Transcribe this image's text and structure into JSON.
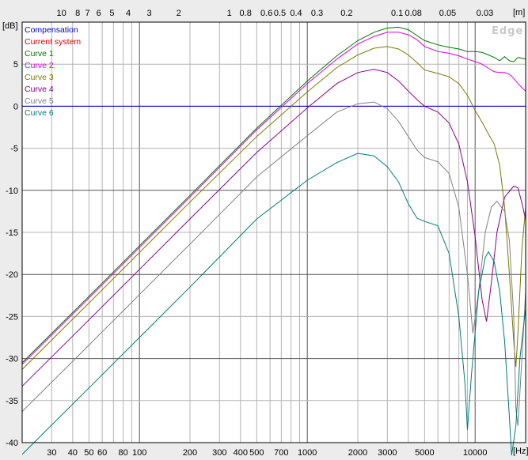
{
  "chart_data": {
    "type": "line",
    "watermark": "Edge",
    "ylabel": "[dB]",
    "xlabel": "[Hz]",
    "top_axis_label": "[m]",
    "x_scale": "log",
    "xlim": [
      20,
      20000
    ],
    "ylim": [
      -40,
      10
    ],
    "grid": true,
    "legend_position": "top-left",
    "x_ticks": [
      {
        "v": 30,
        "label": "30"
      },
      {
        "v": 40,
        "label": "40"
      },
      {
        "v": 50,
        "label": "50"
      },
      {
        "v": 60,
        "label": "60"
      },
      {
        "v": 80,
        "label": "80"
      },
      {
        "v": 100,
        "label": "100"
      },
      {
        "v": 200,
        "label": "200"
      },
      {
        "v": 300,
        "label": "300"
      },
      {
        "v": 400,
        "label": "400"
      },
      {
        "v": 500,
        "label": "500"
      },
      {
        "v": 700,
        "label": "700"
      },
      {
        "v": 1000,
        "label": "1000"
      },
      {
        "v": 2000,
        "label": "2000"
      },
      {
        "v": 3000,
        "label": "3000"
      },
      {
        "v": 5000,
        "label": "5000"
      },
      {
        "v": 10000,
        "label": "10000"
      }
    ],
    "top_ticks": [
      {
        "label": "10",
        "m": 10
      },
      {
        "label": "8",
        "m": 8
      },
      {
        "label": "7",
        "m": 7
      },
      {
        "label": "6",
        "m": 6
      },
      {
        "label": "5",
        "m": 5
      },
      {
        "label": "4",
        "m": 4
      },
      {
        "label": "3",
        "m": 3
      },
      {
        "label": "2",
        "m": 2
      },
      {
        "label": "1",
        "m": 1
      },
      {
        "label": "0.8",
        "m": 0.8
      },
      {
        "label": "0.6",
        "m": 0.6
      },
      {
        "label": "0.5",
        "m": 0.5
      },
      {
        "label": "0.4",
        "m": 0.4
      },
      {
        "label": "0.3",
        "m": 0.3
      },
      {
        "label": "0.2",
        "m": 0.2
      },
      {
        "label": "0.1",
        "m": 0.1
      },
      {
        "label": "0.08",
        "m": 0.08
      },
      {
        "label": "0.05",
        "m": 0.05
      },
      {
        "label": "0.03",
        "m": 0.03
      }
    ],
    "y_ticks": [
      5,
      0,
      -5,
      -10,
      -15,
      -20,
      -25,
      -30,
      -35,
      -40
    ],
    "series": [
      {
        "name": "Compensation",
        "color": "#0000cc",
        "points": [
          [
            20,
            0
          ],
          [
            20000,
            0
          ]
        ]
      },
      {
        "name": "Current system",
        "color": "#cc0000",
        "points": []
      },
      {
        "name": "Curve 1",
        "color": "#007700",
        "points": [
          [
            20,
            -30.5
          ],
          [
            50,
            -22.6
          ],
          [
            100,
            -16.6
          ],
          [
            200,
            -10.6
          ],
          [
            500,
            -2.6
          ],
          [
            1000,
            3.0
          ],
          [
            1500,
            6.0
          ],
          [
            2000,
            7.8
          ],
          [
            2500,
            8.8
          ],
          [
            3000,
            9.3
          ],
          [
            3500,
            9.4
          ],
          [
            4000,
            9.1
          ],
          [
            4500,
            8.4
          ],
          [
            5000,
            7.8
          ],
          [
            6000,
            7.3
          ],
          [
            7000,
            7.0
          ],
          [
            8000,
            6.8
          ],
          [
            9000,
            6.5
          ],
          [
            10000,
            6.5
          ],
          [
            11000,
            6.4
          ],
          [
            12000,
            6.1
          ],
          [
            13000,
            5.8
          ],
          [
            14000,
            5.4
          ],
          [
            15000,
            5.9
          ],
          [
            16000,
            5.4
          ],
          [
            17000,
            5.3
          ],
          [
            18000,
            5.8
          ],
          [
            19000,
            5.7
          ],
          [
            20000,
            5.6
          ]
        ]
      },
      {
        "name": "Curve 2",
        "color": "#dd00dd",
        "points": [
          [
            20,
            -30.7
          ],
          [
            50,
            -22.8
          ],
          [
            100,
            -16.8
          ],
          [
            200,
            -10.8
          ],
          [
            500,
            -2.8
          ],
          [
            1000,
            2.7
          ],
          [
            1500,
            5.6
          ],
          [
            2000,
            7.4
          ],
          [
            2500,
            8.3
          ],
          [
            3000,
            8.8
          ],
          [
            3500,
            8.8
          ],
          [
            4000,
            8.5
          ],
          [
            4500,
            7.9
          ],
          [
            5000,
            7.1
          ],
          [
            6000,
            6.5
          ],
          [
            7000,
            6.3
          ],
          [
            8000,
            6.0
          ],
          [
            9000,
            5.6
          ],
          [
            10000,
            5.3
          ],
          [
            11000,
            5.0
          ],
          [
            12000,
            4.5
          ],
          [
            13000,
            4.1
          ],
          [
            14000,
            4.0
          ],
          [
            15000,
            4.0
          ],
          [
            16000,
            3.8
          ],
          [
            17000,
            3.3
          ],
          [
            18000,
            2.7
          ],
          [
            19000,
            2.2
          ],
          [
            20000,
            1.8
          ]
        ]
      },
      {
        "name": "Curve 3",
        "color": "#7a7a00",
        "points": [
          [
            20,
            -31.3
          ],
          [
            50,
            -23.4
          ],
          [
            100,
            -17.4
          ],
          [
            200,
            -11.4
          ],
          [
            500,
            -3.6
          ],
          [
            1000,
            1.7
          ],
          [
            1500,
            4.6
          ],
          [
            2000,
            6.1
          ],
          [
            2500,
            6.9
          ],
          [
            3000,
            7.1
          ],
          [
            3500,
            6.8
          ],
          [
            4000,
            6.1
          ],
          [
            4500,
            5.2
          ],
          [
            5000,
            4.3
          ],
          [
            6000,
            3.9
          ],
          [
            7000,
            3.5
          ],
          [
            8000,
            2.7
          ],
          [
            9000,
            1.3
          ],
          [
            10000,
            -0.5
          ],
          [
            11000,
            -1.9
          ],
          [
            12000,
            -3.3
          ],
          [
            13000,
            -4.5
          ],
          [
            14000,
            -7.0
          ],
          [
            15000,
            -12.0
          ],
          [
            16000,
            -20.0
          ],
          [
            17000,
            -28.0
          ],
          [
            17500,
            -31.0
          ],
          [
            18000,
            -27.0
          ],
          [
            19000,
            -17.0
          ],
          [
            20000,
            -12.0
          ]
        ]
      },
      {
        "name": "Curve 4",
        "color": "#880088",
        "points": [
          [
            20,
            -33.3
          ],
          [
            50,
            -25.4
          ],
          [
            100,
            -19.4
          ],
          [
            200,
            -13.4
          ],
          [
            500,
            -5.5
          ],
          [
            1000,
            -0.2
          ],
          [
            1500,
            2.7
          ],
          [
            2000,
            4.0
          ],
          [
            2500,
            4.4
          ],
          [
            3000,
            4.0
          ],
          [
            3500,
            3.0
          ],
          [
            4000,
            1.8
          ],
          [
            4500,
            0.8
          ],
          [
            5000,
            0.0
          ],
          [
            6000,
            -0.7
          ],
          [
            7000,
            -2.0
          ],
          [
            8000,
            -4.5
          ],
          [
            9000,
            -9.0
          ],
          [
            10000,
            -15.5
          ],
          [
            11000,
            -23.0
          ],
          [
            11700,
            -25.6
          ],
          [
            12500,
            -21.0
          ],
          [
            13500,
            -15.0
          ],
          [
            15000,
            -10.8
          ],
          [
            17000,
            -9.5
          ],
          [
            18000,
            -9.7
          ],
          [
            19000,
            -11.5
          ],
          [
            20000,
            -13.5
          ]
        ]
      },
      {
        "name": "Curve 5",
        "color": "#808080",
        "points": [
          [
            20,
            -36.3
          ],
          [
            50,
            -28.4
          ],
          [
            100,
            -22.4
          ],
          [
            200,
            -16.4
          ],
          [
            500,
            -8.4
          ],
          [
            1000,
            -3.5
          ],
          [
            1500,
            -0.7
          ],
          [
            2000,
            0.3
          ],
          [
            2500,
            0.5
          ],
          [
            3000,
            -0.3
          ],
          [
            3500,
            -1.8
          ],
          [
            4000,
            -3.6
          ],
          [
            4500,
            -5.2
          ],
          [
            5000,
            -6.1
          ],
          [
            6000,
            -6.6
          ],
          [
            7000,
            -8.0
          ],
          [
            8000,
            -12.0
          ],
          [
            9000,
            -20.0
          ],
          [
            9700,
            -27.0
          ],
          [
            10500,
            -22.0
          ],
          [
            11500,
            -15.0
          ],
          [
            12500,
            -12.0
          ],
          [
            13500,
            -11.3
          ],
          [
            15000,
            -12.5
          ],
          [
            16000,
            -16.0
          ],
          [
            17000,
            -25.0
          ],
          [
            17500,
            -36.0
          ],
          [
            18000,
            -38.0
          ],
          [
            19000,
            -30.0
          ],
          [
            20000,
            -22.0
          ]
        ]
      },
      {
        "name": "Curve 6",
        "color": "#007b7b",
        "points": [
          [
            20,
            -41.4
          ],
          [
            50,
            -33.5
          ],
          [
            100,
            -27.5
          ],
          [
            200,
            -21.5
          ],
          [
            500,
            -13.4
          ],
          [
            1000,
            -8.8
          ],
          [
            1500,
            -6.7
          ],
          [
            2000,
            -5.6
          ],
          [
            2500,
            -5.9
          ],
          [
            3000,
            -7.2
          ],
          [
            3500,
            -9.0
          ],
          [
            4000,
            -11.6
          ],
          [
            4500,
            -13.3
          ],
          [
            5000,
            -13.7
          ],
          [
            6000,
            -14.2
          ],
          [
            7000,
            -17.5
          ],
          [
            8000,
            -25.0
          ],
          [
            8700,
            -33.0
          ],
          [
            9000,
            -38.5
          ],
          [
            9500,
            -32.0
          ],
          [
            10500,
            -22.0
          ],
          [
            11500,
            -18.0
          ],
          [
            12000,
            -17.3
          ],
          [
            13000,
            -18.5
          ],
          [
            14000,
            -22.0
          ],
          [
            15000,
            -28.0
          ],
          [
            16000,
            -37.0
          ],
          [
            16500,
            -41.5
          ],
          [
            17500,
            -38.0
          ],
          [
            18500,
            -30.0
          ],
          [
            20000,
            -24.0
          ]
        ]
      }
    ]
  }
}
